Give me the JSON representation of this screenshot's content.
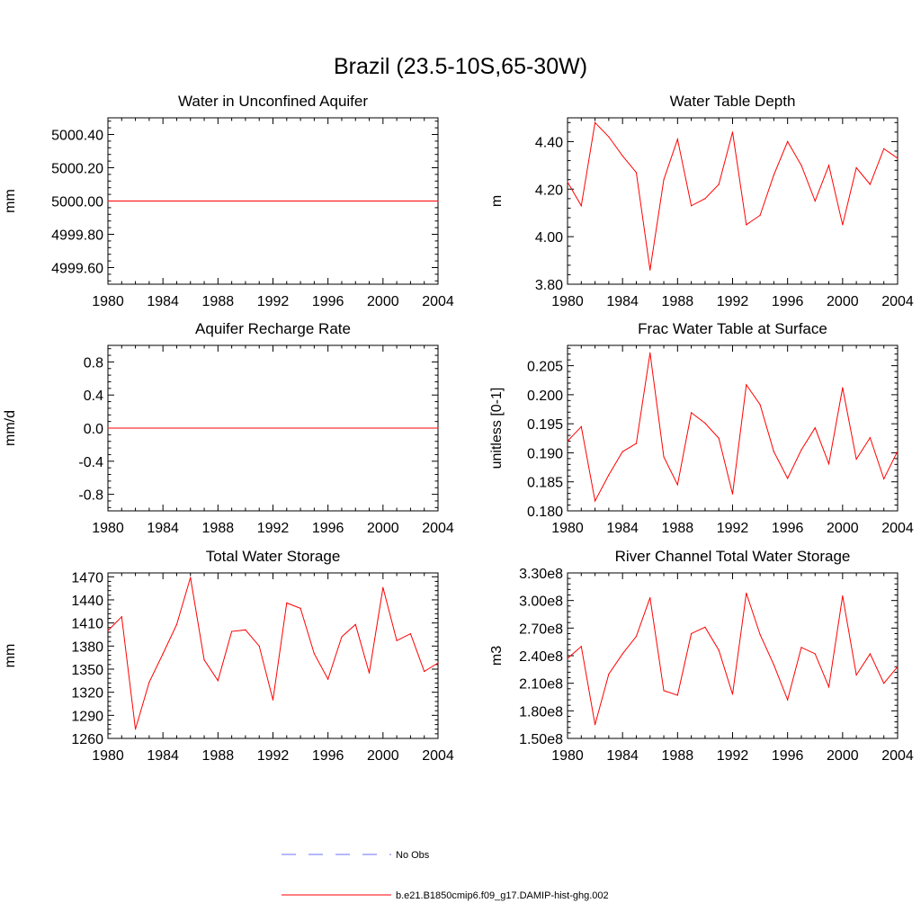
{
  "title": "Brazil (23.5-10S,65-30W)",
  "colors": {
    "model": "#ff0000",
    "obs": "#6f6fff",
    "axis": "#000000"
  },
  "legend": {
    "entries": [
      {
        "label": "No Obs",
        "color": "#6f6fff",
        "dash": true
      },
      {
        "label": "b.e21.B1850cmip6.f09_g17.DAMIP-hist-ghg.002",
        "color": "#ff0000",
        "dash": false
      }
    ]
  },
  "chart_data": [
    {
      "type": "line",
      "title": "Water in Unconfined Aquifer",
      "ylabel": "mm",
      "xlim": [
        1980,
        2004
      ],
      "ylim": [
        4999.5,
        5000.5
      ],
      "xticks": [
        "1980",
        "1984",
        "1988",
        "1992",
        "1996",
        "2000",
        "2004"
      ],
      "yticks": [
        "4999.60",
        "4999.80",
        "5000.00",
        "5000.20",
        "5000.40"
      ],
      "ytick_values": [
        4999.6,
        4999.8,
        5000.0,
        5000.2,
        5000.4
      ],
      "series": [
        {
          "x": [
            1980,
            2004
          ],
          "values": [
            5000.0,
            5000.0
          ]
        }
      ]
    },
    {
      "type": "line",
      "title": "Water Table Depth",
      "ylabel": "m",
      "xlim": [
        1980,
        2004
      ],
      "ylim": [
        3.8,
        4.5
      ],
      "xticks": [
        "1980",
        "1984",
        "1988",
        "1992",
        "1996",
        "2000",
        "2004"
      ],
      "yticks": [
        "3.80",
        "4.00",
        "4.20",
        "4.40"
      ],
      "ytick_values": [
        3.8,
        4.0,
        4.2,
        4.4
      ],
      "series": [
        {
          "x": [
            1980,
            1981,
            1982,
            1983,
            1984,
            1985,
            1986,
            1987,
            1988,
            1989,
            1990,
            1991,
            1992,
            1993,
            1994,
            1995,
            1996,
            1997,
            1998,
            1999,
            2000,
            2001,
            2002,
            2003,
            2004
          ],
          "values": [
            4.23,
            4.13,
            4.48,
            4.42,
            4.34,
            4.27,
            3.86,
            4.24,
            4.41,
            4.13,
            4.16,
            4.22,
            4.44,
            4.05,
            4.09,
            4.26,
            4.4,
            4.3,
            4.15,
            4.3,
            4.05,
            4.29,
            4.22,
            4.37,
            4.33
          ]
        }
      ]
    },
    {
      "type": "line",
      "title": "Aquifer Recharge Rate",
      "ylabel": "mm/d",
      "xlim": [
        1980,
        2004
      ],
      "ylim": [
        -1.0,
        1.0
      ],
      "xticks": [
        "1980",
        "1984",
        "1988",
        "1992",
        "1996",
        "2000",
        "2004"
      ],
      "yticks": [
        "-0.8",
        "-0.4",
        "0.0",
        "0.4",
        "0.8"
      ],
      "ytick_values": [
        -0.8,
        -0.4,
        0.0,
        0.4,
        0.8
      ],
      "series": [
        {
          "x": [
            1980,
            2004
          ],
          "values": [
            0.0,
            0.0
          ]
        }
      ]
    },
    {
      "type": "line",
      "title": "Frac Water Table at Surface",
      "ylabel": "unitless [0-1]",
      "xlim": [
        1980,
        2004
      ],
      "ylim": [
        0.18,
        0.2085
      ],
      "xticks": [
        "1980",
        "1984",
        "1988",
        "1992",
        "1996",
        "2000",
        "2004"
      ],
      "yticks": [
        "0.180",
        "0.185",
        "0.190",
        "0.195",
        "0.200",
        "0.205"
      ],
      "ytick_values": [
        0.18,
        0.185,
        0.19,
        0.195,
        0.2,
        0.205
      ],
      "series": [
        {
          "x": [
            1980,
            1981,
            1982,
            1983,
            1984,
            1985,
            1986,
            1987,
            1988,
            1989,
            1990,
            1991,
            1992,
            1993,
            1994,
            1995,
            1996,
            1997,
            1998,
            1999,
            2000,
            2001,
            2002,
            2003,
            2004
          ],
          "values": [
            0.192,
            0.1945,
            0.1817,
            0.1862,
            0.1902,
            0.1916,
            0.2072,
            0.1893,
            0.1845,
            0.1969,
            0.1951,
            0.1925,
            0.1829,
            0.2017,
            0.1983,
            0.1902,
            0.1856,
            0.1905,
            0.1943,
            0.1881,
            0.2012,
            0.1889,
            0.1926,
            0.1855,
            0.1903
          ]
        }
      ]
    },
    {
      "type": "line",
      "title": "Total Water Storage",
      "ylabel": "mm",
      "xlim": [
        1980,
        2004
      ],
      "ylim": [
        1260,
        1475
      ],
      "xticks": [
        "1980",
        "1984",
        "1988",
        "1992",
        "1996",
        "2000",
        "2004"
      ],
      "yticks": [
        "1260",
        "1290",
        "1320",
        "1350",
        "1380",
        "1410",
        "1440",
        "1470"
      ],
      "ytick_values": [
        1260,
        1290,
        1320,
        1350,
        1380,
        1410,
        1440,
        1470
      ],
      "series": [
        {
          "x": [
            1980,
            1981,
            1982,
            1983,
            1984,
            1985,
            1986,
            1987,
            1988,
            1989,
            1990,
            1991,
            1992,
            1993,
            1994,
            1995,
            1996,
            1997,
            1998,
            1999,
            2000,
            2001,
            2002,
            2003,
            2004
          ],
          "values": [
            1400,
            1418,
            1272,
            1333,
            1370,
            1408,
            1469,
            1362,
            1335,
            1399,
            1401,
            1380,
            1310,
            1436,
            1429,
            1370,
            1337,
            1392,
            1408,
            1345,
            1456,
            1387,
            1396,
            1347,
            1358
          ]
        }
      ]
    },
    {
      "type": "line",
      "title": "River Channel Total Water Storage",
      "ylabel": "m3",
      "xlim": [
        1980,
        2004
      ],
      "ylim": [
        150000000.0,
        330000000.0
      ],
      "xticks": [
        "1980",
        "1984",
        "1988",
        "1992",
        "1996",
        "2000",
        "2004"
      ],
      "yticks": [
        "1.50e8",
        "1.80e8",
        "2.10e8",
        "2.40e8",
        "2.70e8",
        "3.00e8",
        "3.30e8"
      ],
      "ytick_values": [
        150000000.0,
        180000000.0,
        210000000.0,
        240000000.0,
        270000000.0,
        300000000.0,
        330000000.0
      ],
      "series": [
        {
          "x": [
            1980,
            1981,
            1982,
            1983,
            1984,
            1985,
            1986,
            1987,
            1988,
            1989,
            1990,
            1991,
            1992,
            1993,
            1994,
            1995,
            1996,
            1997,
            1998,
            1999,
            2000,
            2001,
            2002,
            2003,
            2004
          ],
          "values": [
            237000000.0,
            250000000.0,
            165000000.0,
            220000000.0,
            242000000.0,
            261000000.0,
            303000000.0,
            202000000.0,
            197000000.0,
            264000000.0,
            271000000.0,
            246000000.0,
            198000000.0,
            308000000.0,
            263000000.0,
            230000000.0,
            192000000.0,
            249000000.0,
            242000000.0,
            206000000.0,
            305000000.0,
            219000000.0,
            242000000.0,
            210000000.0,
            228000000.0
          ]
        }
      ]
    }
  ]
}
